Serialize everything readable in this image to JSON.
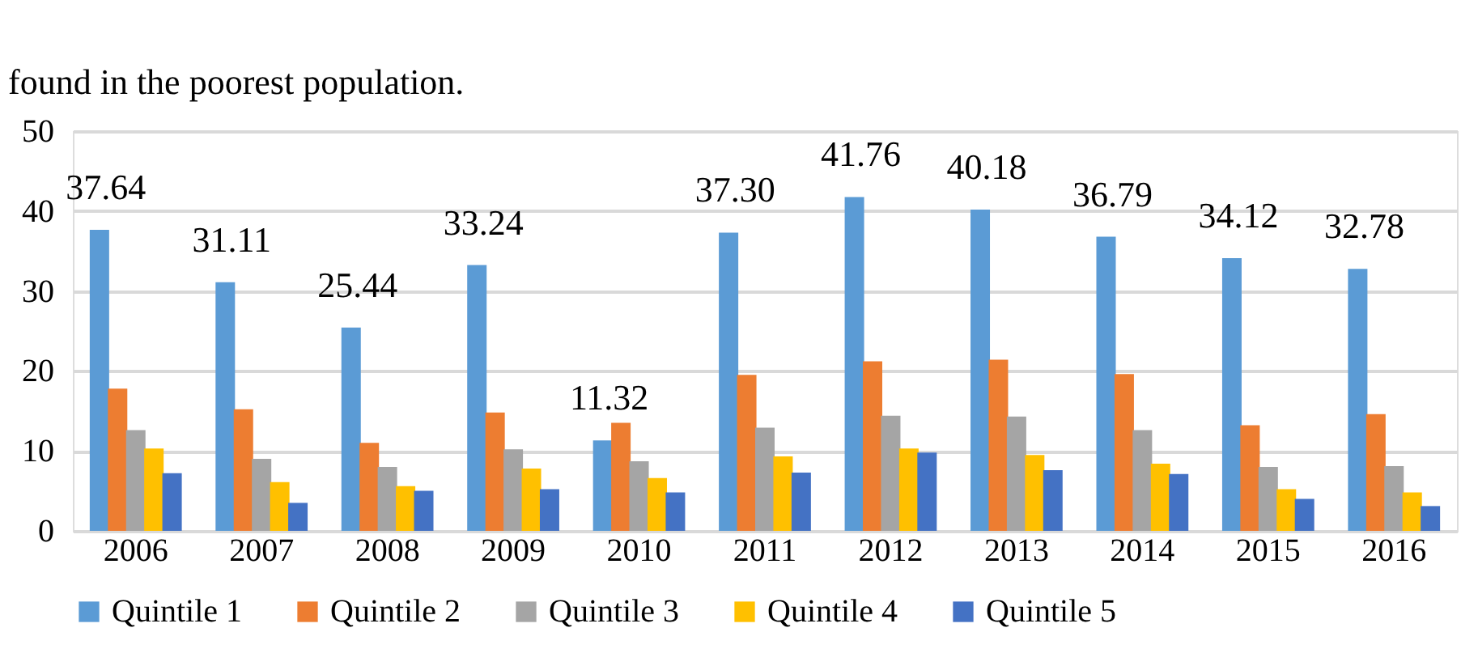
{
  "chart_data": {
    "type": "bar",
    "annotations": [
      "found in the poorest population."
    ],
    "categories": [
      "2006",
      "2007",
      "2008",
      "2009",
      "2010",
      "2011",
      "2012",
      "2013",
      "2014",
      "2015",
      "2016"
    ],
    "series": [
      {
        "name": "Quintile 1",
        "color": "#5b9bd5",
        "values": [
          37.64,
          31.11,
          25.44,
          33.24,
          11.32,
          37.3,
          41.76,
          40.18,
          36.79,
          34.12,
          32.78
        ],
        "value_labels": [
          "37.64",
          "31.11",
          "25.44",
          "33.24",
          "11.32",
          "37.30",
          "41.76",
          "40.18",
          "36.79",
          "34.12",
          "32.78"
        ]
      },
      {
        "name": "Quintile 2",
        "color": "#ed7d31",
        "values": [
          17.8,
          15.2,
          11.0,
          14.8,
          13.5,
          19.5,
          21.2,
          21.4,
          19.6,
          13.2,
          14.6
        ]
      },
      {
        "name": "Quintile 3",
        "color": "#a5a5a5",
        "values": [
          12.6,
          9.0,
          8.0,
          10.2,
          8.7,
          12.9,
          14.4,
          14.3,
          12.6,
          8.0,
          8.1
        ]
      },
      {
        "name": "Quintile 4",
        "color": "#ffc000",
        "values": [
          10.3,
          6.1,
          5.6,
          7.8,
          6.6,
          9.3,
          10.3,
          9.5,
          8.4,
          5.2,
          4.8
        ]
      },
      {
        "name": "Quintile 5",
        "color": "#4472c4",
        "values": [
          7.2,
          3.5,
          5.0,
          5.2,
          4.8,
          7.3,
          9.8,
          7.6,
          7.1,
          4.0,
          3.1
        ]
      }
    ],
    "ylim": [
      0,
      50
    ],
    "yticks": [
      0,
      10,
      20,
      30,
      40,
      50
    ],
    "grid": "y",
    "legend": "bottom"
  }
}
